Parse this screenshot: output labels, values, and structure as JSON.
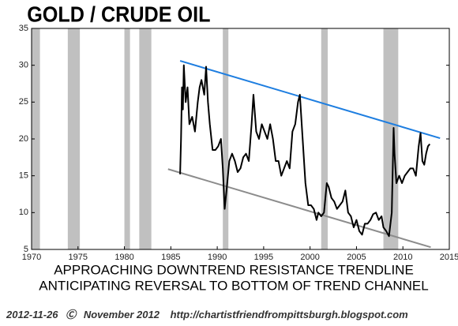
{
  "chart_data": {
    "type": "line",
    "title": "GOLD / CRUDE OIL",
    "annotations": [
      "APPROACHING DOWNTREND RESISTANCE TRENDLINE",
      "ANTICIPATING REVERSAL TO BOTTOM OF TREND CHANNEL"
    ],
    "footer": [
      "2012-11-26",
      "Ⓒ",
      "November 2012",
      "http://chartistfriendfrompittsburgh.blogspot.com"
    ],
    "xlim": [
      1970,
      2015
    ],
    "ylim": [
      5,
      35
    ],
    "xticks": [
      1970,
      1975,
      1980,
      1985,
      1990,
      1995,
      2000,
      2005,
      2010,
      2015
    ],
    "yticks": [
      5,
      10,
      15,
      20,
      25,
      30,
      35
    ],
    "shaded_periods": [
      [
        1970,
        1970.9
      ],
      [
        1973.9,
        1975.2
      ],
      [
        1980.0,
        1980.6
      ],
      [
        1981.6,
        1982.9
      ],
      [
        1990.6,
        1991.2
      ],
      [
        2001.2,
        2001.9
      ],
      [
        2007.9,
        2009.5
      ]
    ],
    "shade_color": "#c0c0c0",
    "trendlines": [
      {
        "color": "#1e7ee0",
        "x": [
          1986,
          2014
        ],
        "y": [
          30.6,
          20.1
        ]
      },
      {
        "color": "#8c8c8c",
        "x": [
          1984.7,
          2013
        ],
        "y": [
          15.9,
          5.3
        ]
      }
    ],
    "series": [
      {
        "color": "#000000",
        "x": [
          1986.0,
          1986.1,
          1986.2,
          1986.3,
          1986.4,
          1986.6,
          1986.8,
          1987.0,
          1987.3,
          1987.6,
          1987.9,
          1988.1,
          1988.3,
          1988.6,
          1988.8,
          1989.0,
          1989.2,
          1989.5,
          1989.8,
          1990.1,
          1990.4,
          1990.6,
          1990.8,
          1991.0,
          1991.3,
          1991.6,
          1991.9,
          1992.2,
          1992.5,
          1992.8,
          1993.1,
          1993.4,
          1993.7,
          1993.9,
          1994.2,
          1994.5,
          1994.8,
          1995.1,
          1995.4,
          1995.7,
          1996.0,
          1996.3,
          1996.6,
          1996.9,
          1997.2,
          1997.5,
          1997.8,
          1998.1,
          1998.4,
          1998.7,
          1998.9,
          1999.2,
          1999.5,
          1999.8,
          2000.1,
          2000.4,
          2000.7,
          2000.9,
          2001.2,
          2001.5,
          2001.8,
          2002.0,
          2002.3,
          2002.6,
          2002.9,
          2003.2,
          2003.5,
          2003.8,
          2004.1,
          2004.4,
          2004.7,
          2005.0,
          2005.3,
          2005.6,
          2005.9,
          2006.2,
          2006.5,
          2006.8,
          2007.1,
          2007.4,
          2007.7,
          2007.9,
          2008.2,
          2008.5,
          2008.8,
          2009.0,
          2009.1,
          2009.3,
          2009.6,
          2009.9,
          2010.2,
          2010.5,
          2010.8,
          2011.1,
          2011.4,
          2011.7,
          2011.9,
          2012.1,
          2012.3,
          2012.5,
          2012.7,
          2012.9
        ],
        "values": [
          15.2,
          20,
          27,
          24,
          30,
          25,
          27,
          22,
          23,
          21,
          25,
          27,
          28,
          26,
          29.8,
          25,
          22,
          18.5,
          18.5,
          19,
          20,
          16,
          10.5,
          13,
          17,
          18,
          17,
          15.5,
          16,
          17.5,
          18,
          17,
          22,
          26,
          21,
          20,
          22,
          21,
          20,
          22,
          20,
          17,
          17,
          15,
          16,
          17,
          16,
          21,
          22,
          25,
          26,
          20,
          14,
          11,
          11,
          10.5,
          9,
          10,
          9.5,
          10,
          14,
          13.5,
          12,
          11.5,
          10.5,
          11,
          11.5,
          13,
          10,
          9.5,
          8,
          9,
          7.5,
          7,
          8.5,
          8.5,
          9,
          9.8,
          10,
          9,
          9.5,
          8,
          7.5,
          6.8,
          10,
          21.5,
          18,
          14,
          15,
          14,
          15,
          15.5,
          16,
          16,
          15,
          19,
          20.8,
          17,
          16.5,
          18,
          19,
          19.3
        ]
      }
    ]
  }
}
